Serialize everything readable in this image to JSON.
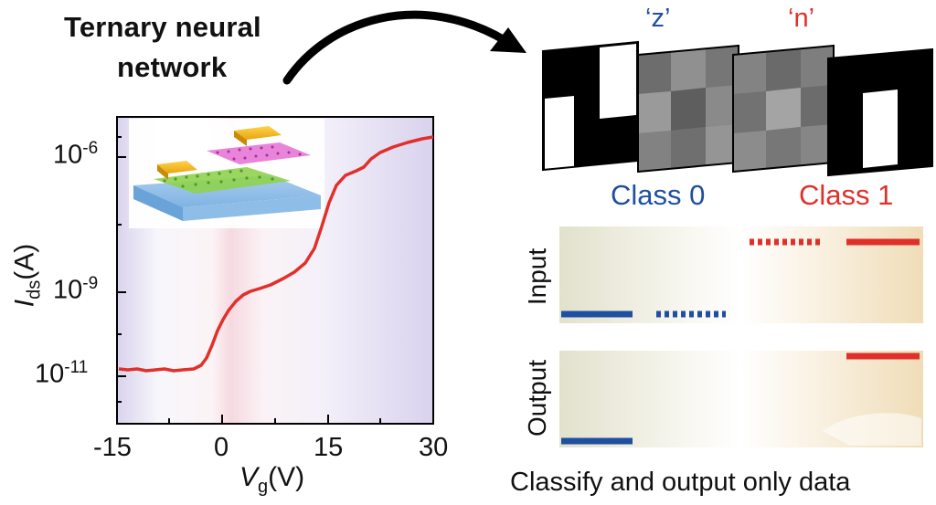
{
  "title": {
    "line1": "Ternary neural",
    "line2": "network"
  },
  "plot": {
    "ylabel_main": "I",
    "ylabel_sub": "ds",
    "ylabel_unit": "(A)",
    "xlabel_main": "V",
    "xlabel_sub": "g",
    "xlabel_unit": "(V)",
    "xticks": [
      "-15",
      "0",
      "15",
      "30"
    ],
    "yticks": [
      {
        "base": "10",
        "exp": "-6"
      },
      {
        "base": "10",
        "exp": "-9"
      },
      {
        "base": "10",
        "exp": "-11"
      }
    ],
    "curve_color": "#e0302a"
  },
  "patterns": {
    "quote_z": "‘z’",
    "quote_n": "‘n’",
    "class0": "Class 0",
    "class1": "Class 1",
    "blue": "#1f4fa0",
    "red": "#e0302a"
  },
  "panels": {
    "input_label": "Input",
    "output_label": "Output",
    "footer": "Classify and output only data"
  }
}
